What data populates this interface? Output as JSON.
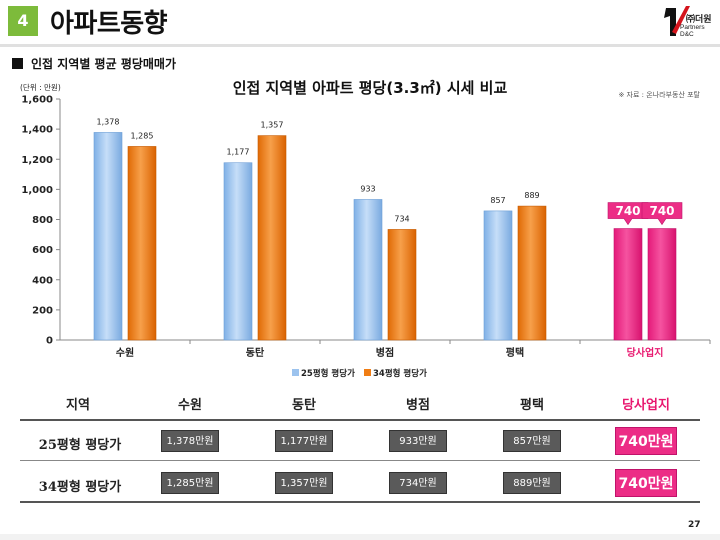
{
  "header": {
    "section_number": "4",
    "title": "아파트동향",
    "logo_line1": "㈜더원",
    "logo_line2": "Partners D&C"
  },
  "subheading": "인접 지역별 평균 평당매매가",
  "chart_data": {
    "type": "bar",
    "title": "인접 지역별 아파트 평당(3.3㎡) 시세 비교",
    "source": "※ 자료 : 온나라부동산 포탈",
    "unit_label": "(단위 : 만원)",
    "categories": [
      "수원",
      "동탄",
      "병점",
      "평택",
      "당사업지"
    ],
    "highlight_category": "당사업지",
    "series": [
      {
        "name": "25평형 평당가",
        "values": [
          1378,
          1177,
          933,
          857,
          740
        ],
        "value_labels": [
          "1,378",
          "1,177",
          "933",
          "857",
          "740"
        ]
      },
      {
        "name": "34평형 평당가",
        "values": [
          1285,
          1357,
          734,
          889,
          740
        ],
        "value_labels": [
          "1,285",
          "1,357",
          "734",
          "889",
          "740"
        ]
      }
    ],
    "ylim": [
      0,
      1600
    ],
    "yticks": [
      0,
      200,
      400,
      600,
      800,
      1000,
      1200,
      1400,
      1600
    ],
    "ytick_labels": [
      "0",
      "200",
      "400",
      "600",
      "800",
      "1,000",
      "1,200",
      "1,400",
      "1,600"
    ],
    "legend_position": "bottom-center",
    "grid": false,
    "colors": {
      "series1": "#9cc3ee",
      "series2": "#f07d14",
      "highlight": "#ec2d86",
      "highlight_text": "#e8166e"
    }
  },
  "table": {
    "header_label": "지역",
    "columns": [
      "수원",
      "동탄",
      "병점",
      "평택",
      "당사업지"
    ],
    "rows": [
      {
        "label": "25평형 평당가",
        "values": [
          "1,378만원",
          "1,177만원",
          "933만원",
          "857만원",
          "740만원"
        ]
      },
      {
        "label": "34평형 평당가",
        "values": [
          "1,285만원",
          "1,357만원",
          "734만원",
          "889만원",
          "740만원"
        ]
      }
    ]
  },
  "page_number": "27"
}
